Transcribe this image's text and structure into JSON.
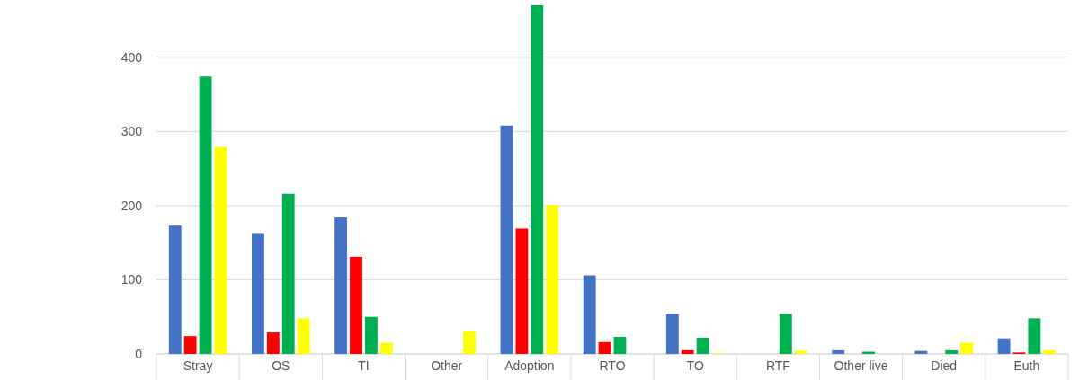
{
  "chart_data": {
    "type": "bar",
    "categories": [
      "Stray",
      "OS",
      "TI",
      "Other",
      "Adoption",
      "RTO",
      "TO",
      "RTF",
      "Other live",
      "Died",
      "Euth"
    ],
    "series": [
      {
        "color": "#4472c4",
        "values": [
          173,
          163,
          184,
          0,
          308,
          106,
          54,
          0,
          5,
          4,
          21
        ]
      },
      {
        "color": "#ff0000",
        "values": [
          24,
          29,
          131,
          0,
          169,
          16,
          5,
          0,
          0,
          0,
          2
        ]
      },
      {
        "color": "#00b050",
        "values": [
          374,
          216,
          50,
          0,
          470,
          23,
          22,
          54,
          3,
          5,
          48
        ]
      },
      {
        "color": "#ffff00",
        "values": [
          279,
          48,
          15,
          31,
          201,
          0,
          1,
          4,
          0,
          15,
          5
        ]
      }
    ],
    "ylim": [
      0,
      470
    ],
    "yticks": [
      0,
      100,
      200,
      300,
      400
    ],
    "grid": "y"
  }
}
